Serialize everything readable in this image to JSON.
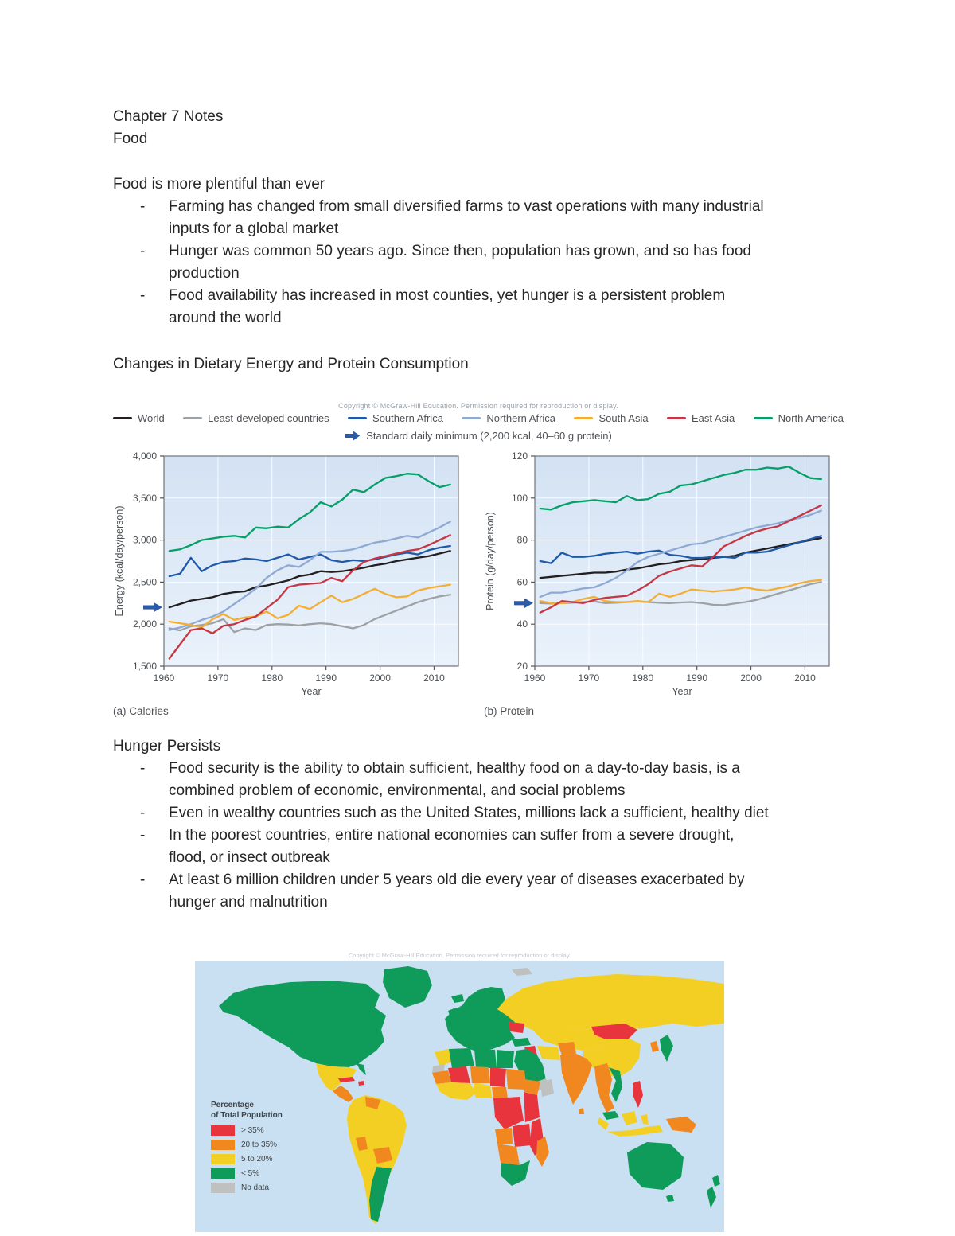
{
  "document": {
    "title_line1": "Chapter 7 Notes",
    "title_line2": "Food"
  },
  "sections": {
    "s1": {
      "heading": "Food is more plentiful than ever",
      "bullets": [
        "Farming has changed from small diversified farms to vast operations with many industrial inputs for a global market",
        "Hunger was common 50 years ago. Since then, population has grown, and so has food production",
        "Food availability has increased in most counties, yet hunger is a persistent problem around the world"
      ]
    },
    "s2": {
      "heading": "Changes in Dietary Energy and Protein Consumption"
    },
    "s3": {
      "heading": "Hunger Persists",
      "bullets": [
        "Food security is the ability to obtain sufficient, healthy food on a day-to-day basis, is a combined problem of economic, environmental, and social problems",
        "Even in wealthy countries such as the United States, millions lack a sufficient, healthy diet",
        "In the poorest countries, entire national economies can suffer from a severe drought, flood, or insect outbreak",
        "At least 6 million children under 5 years old die every year of diseases exacerbated by hunger and malnutrition"
      ]
    }
  },
  "figure": {
    "copyright": "Copyright © McGraw-Hill Education. Permission required for reproduction or display.",
    "minimum_label": "Standard daily minimum (2,200 kcal, 40–60 g protein)",
    "arrow_color": "#2b5aa7",
    "legend": [
      {
        "label": "World",
        "color": "#231f20"
      },
      {
        "label": "Least-developed countries",
        "color": "#9fa2a5"
      },
      {
        "label": "Southern Africa",
        "color": "#1f5aa8"
      },
      {
        "label": "Northern Africa",
        "color": "#8ea9d4"
      },
      {
        "label": "South Asia",
        "color": "#f3ae33"
      },
      {
        "label": "East Asia",
        "color": "#c53744"
      },
      {
        "label": "North America",
        "color": "#079e68"
      }
    ]
  },
  "chart_data": [
    {
      "type": "line",
      "title": "(a) Calories",
      "xlabel": "Year",
      "ylabel": "Energy (kcal/day/person)",
      "xlim": [
        1960,
        2014.5
      ],
      "ylim": [
        1500,
        4000
      ],
      "xticks": [
        1960,
        1970,
        1980,
        1990,
        2000,
        2010
      ],
      "yticks": [
        1500,
        2000,
        2500,
        3000,
        3500,
        4000
      ],
      "ytick_labels": [
        "1,500",
        "2,000",
        "2,500",
        "3,000",
        "3,500",
        "4,000"
      ],
      "grid": true,
      "minimum_marker": 2200,
      "x": [
        1961,
        1963,
        1965,
        1967,
        1969,
        1971,
        1973,
        1975,
        1977,
        1979,
        1981,
        1983,
        1985,
        1987,
        1989,
        1991,
        1993,
        1995,
        1997,
        1999,
        2001,
        2003,
        2005,
        2007,
        2009,
        2011,
        2013
      ],
      "series": [
        {
          "name": "World",
          "color": "#231f20",
          "values": [
            2200,
            2240,
            2280,
            2300,
            2320,
            2360,
            2380,
            2390,
            2440,
            2460,
            2490,
            2520,
            2570,
            2590,
            2630,
            2620,
            2630,
            2650,
            2670,
            2700,
            2720,
            2750,
            2770,
            2790,
            2810,
            2840,
            2870
          ]
        },
        {
          "name": "Least-developed countries",
          "color": "#9fa2a5",
          "values": [
            1950,
            1925,
            1975,
            1990,
            2010,
            2060,
            1905,
            1950,
            1930,
            1990,
            2000,
            1995,
            1985,
            2000,
            2010,
            2000,
            1975,
            1950,
            1990,
            2060,
            2110,
            2160,
            2210,
            2260,
            2300,
            2330,
            2350
          ]
        },
        {
          "name": "Southern Africa",
          "color": "#1f5aa8",
          "values": [
            2570,
            2600,
            2790,
            2630,
            2700,
            2740,
            2750,
            2780,
            2770,
            2750,
            2790,
            2830,
            2770,
            2800,
            2830,
            2760,
            2740,
            2760,
            2750,
            2770,
            2800,
            2830,
            2850,
            2830,
            2880,
            2910,
            2930
          ]
        },
        {
          "name": "Northern Africa",
          "color": "#8ea9d4",
          "values": [
            1930,
            1960,
            2000,
            2050,
            2090,
            2150,
            2240,
            2330,
            2420,
            2550,
            2640,
            2700,
            2680,
            2760,
            2860,
            2860,
            2870,
            2890,
            2930,
            2970,
            2990,
            3020,
            3050,
            3030,
            3090,
            3150,
            3220
          ]
        },
        {
          "name": "South Asia",
          "color": "#f3ae33",
          "values": [
            2030,
            2010,
            1990,
            1960,
            2060,
            2120,
            2050,
            2080,
            2090,
            2150,
            2070,
            2110,
            2220,
            2180,
            2260,
            2340,
            2260,
            2300,
            2360,
            2420,
            2360,
            2320,
            2330,
            2400,
            2430,
            2450,
            2470
          ]
        },
        {
          "name": "East Asia",
          "color": "#c53744",
          "values": [
            1590,
            1760,
            1930,
            1950,
            1890,
            1980,
            2000,
            2050,
            2090,
            2190,
            2290,
            2440,
            2470,
            2480,
            2490,
            2550,
            2510,
            2640,
            2740,
            2780,
            2810,
            2840,
            2870,
            2890,
            2940,
            3000,
            3060
          ]
        },
        {
          "name": "North America",
          "color": "#079e68",
          "values": [
            2870,
            2890,
            2940,
            3000,
            3020,
            3040,
            3050,
            3030,
            3150,
            3140,
            3160,
            3150,
            3250,
            3330,
            3450,
            3400,
            3480,
            3600,
            3570,
            3660,
            3740,
            3760,
            3790,
            3780,
            3700,
            3630,
            3660
          ]
        }
      ]
    },
    {
      "type": "line",
      "title": "(b) Protein",
      "xlabel": "Year",
      "ylabel": "Protein (g/day/person)",
      "xlim": [
        1960,
        2014.5
      ],
      "ylim": [
        20,
        120
      ],
      "xticks": [
        1960,
        1970,
        1980,
        1990,
        2000,
        2010
      ],
      "yticks": [
        20,
        40,
        60,
        80,
        100,
        120
      ],
      "ytick_labels": [
        "20",
        "40",
        "60",
        "80",
        "100",
        "120"
      ],
      "grid": true,
      "minimum_marker": 50,
      "x": [
        1961,
        1963,
        1965,
        1967,
        1969,
        1971,
        1973,
        1975,
        1977,
        1979,
        1981,
        1983,
        1985,
        1987,
        1989,
        1991,
        1993,
        1995,
        1997,
        1999,
        2001,
        2003,
        2005,
        2007,
        2009,
        2011,
        2013
      ],
      "series": [
        {
          "name": "World",
          "color": "#231f20",
          "values": [
            62,
            62.5,
            63,
            63.5,
            64,
            64.5,
            64.5,
            65,
            66,
            66.5,
            67.5,
            68.5,
            69,
            70,
            70.5,
            71,
            71.5,
            72,
            72.5,
            74,
            75,
            76,
            77,
            78,
            79,
            80,
            81
          ]
        },
        {
          "name": "Least-developed countries",
          "color": "#9fa2a5",
          "values": [
            50,
            49.8,
            50,
            50.2,
            50.5,
            50.8,
            50,
            50.2,
            50.5,
            50.8,
            50.5,
            50.2,
            50,
            50.3,
            50.5,
            50,
            49.2,
            49,
            49.8,
            50.5,
            51.5,
            53,
            54.5,
            56,
            57.5,
            59,
            60
          ]
        },
        {
          "name": "Southern Africa",
          "color": "#1f5aa8",
          "values": [
            70,
            69,
            74,
            72,
            72,
            72.5,
            73.5,
            74,
            74.5,
            73.5,
            74.5,
            75,
            73,
            72.5,
            71.5,
            71.5,
            72,
            72,
            71.5,
            74,
            74,
            74.5,
            76,
            77.5,
            79,
            80.5,
            82
          ]
        },
        {
          "name": "Northern Africa",
          "color": "#8ea9d4",
          "values": [
            53,
            55,
            55,
            56,
            57,
            57.5,
            59.5,
            62,
            65.5,
            69.5,
            72,
            73.5,
            75,
            76.5,
            78,
            78.5,
            80,
            81.5,
            83,
            84.5,
            86,
            87,
            88,
            89.5,
            90.5,
            92,
            94
          ]
        },
        {
          "name": "South Asia",
          "color": "#f3ae33",
          "values": [
            51,
            50,
            50,
            50.5,
            52,
            53,
            51,
            50.5,
            50.5,
            51,
            50.5,
            54.5,
            53,
            54.5,
            56.5,
            56,
            55.5,
            56,
            56.5,
            57.5,
            56.5,
            56,
            57,
            58,
            59.5,
            60.5,
            61
          ]
        },
        {
          "name": "East Asia",
          "color": "#c53744",
          "values": [
            45.5,
            48,
            51,
            50.5,
            50,
            51.5,
            52.5,
            53,
            53.5,
            56,
            59,
            63,
            65,
            66.5,
            68,
            67.5,
            72,
            77,
            79.5,
            82,
            84,
            85.5,
            86.5,
            89,
            91.5,
            94,
            96.5
          ]
        },
        {
          "name": "North America",
          "color": "#079e68",
          "values": [
            95,
            94.5,
            96.5,
            98,
            98.5,
            99,
            98.5,
            98,
            101,
            99,
            99.5,
            102,
            103,
            106,
            106.5,
            108,
            109.5,
            111,
            112,
            113.5,
            113.5,
            114.5,
            114,
            115,
            112,
            109.5,
            109
          ]
        }
      ]
    }
  ],
  "map": {
    "copyright": "Copyright © McGraw-Hill Education. Permission required for reproduction or display.",
    "legend_title_line1": "Percentage",
    "legend_title_line2": "of Total Population",
    "ocean_color": "#c8e0f1",
    "legend": [
      {
        "label": "> 35%",
        "color": "#e8353d"
      },
      {
        "label": "20 to 35%",
        "color": "#f0881f"
      },
      {
        "label": "5 to 20%",
        "color": "#f3cf24"
      },
      {
        "label": "< 5%",
        "color": "#0f9b59"
      },
      {
        "label": "No data",
        "color": "#bfc0c0"
      }
    ]
  }
}
